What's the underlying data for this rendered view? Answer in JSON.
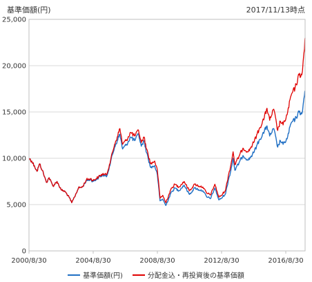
{
  "chart_data": {
    "type": "line",
    "ylabel": "基準価額(円)",
    "as_of": "2017/11/13時点",
    "ylim": [
      0,
      25000
    ],
    "yticks": [
      "0",
      "5,000",
      "10,000",
      "15,000",
      "20,000",
      "25,000"
    ],
    "xlim": [
      "2000-08-30",
      "2017-11-13"
    ],
    "xticks": [
      {
        "label": "2000/8/30",
        "date": "2000-08-30"
      },
      {
        "label": "2004/8/30",
        "date": "2004-08-30"
      },
      {
        "label": "2008/8/30",
        "date": "2008-08-30"
      },
      {
        "label": "2012/8/30",
        "date": "2012-08-30"
      },
      {
        "label": "2016/8/30",
        "date": "2016-08-30"
      }
    ],
    "grid": true,
    "legend_position": "bottom",
    "series": [
      {
        "name": "基準価額(円)",
        "color": "#1f6fc4",
        "points": [
          [
            "2000-08-30",
            10000
          ],
          [
            "2000-10-30",
            9700
          ],
          [
            "2000-12-30",
            9200
          ],
          [
            "2001-02-28",
            8600
          ],
          [
            "2001-04-30",
            9400
          ],
          [
            "2001-06-30",
            8700
          ],
          [
            "2001-09-30",
            7400
          ],
          [
            "2001-11-30",
            7900
          ],
          [
            "2002-02-28",
            7000
          ],
          [
            "2002-05-30",
            7500
          ],
          [
            "2002-08-30",
            6600
          ],
          [
            "2002-11-30",
            6400
          ],
          [
            "2003-02-28",
            5800
          ],
          [
            "2003-04-30",
            5200
          ],
          [
            "2003-06-30",
            5800
          ],
          [
            "2003-09-30",
            6800
          ],
          [
            "2003-12-30",
            6900
          ],
          [
            "2004-03-30",
            7600
          ],
          [
            "2004-06-30",
            7700
          ],
          [
            "2004-08-30",
            7500
          ],
          [
            "2004-12-30",
            7900
          ],
          [
            "2005-03-30",
            8200
          ],
          [
            "2005-06-30",
            8000
          ],
          [
            "2005-09-30",
            9600
          ],
          [
            "2005-12-30",
            11200
          ],
          [
            "2006-02-28",
            11900
          ],
          [
            "2006-04-30",
            12600
          ],
          [
            "2006-06-30",
            11000
          ],
          [
            "2006-09-30",
            11500
          ],
          [
            "2006-12-30",
            12300
          ],
          [
            "2007-03-30",
            11900
          ],
          [
            "2007-06-30",
            12600
          ],
          [
            "2007-08-30",
            11300
          ],
          [
            "2007-10-30",
            11900
          ],
          [
            "2007-12-30",
            10600
          ],
          [
            "2008-03-30",
            9000
          ],
          [
            "2008-06-30",
            9200
          ],
          [
            "2008-08-30",
            8200
          ],
          [
            "2008-10-30",
            5400
          ],
          [
            "2008-12-30",
            5600
          ],
          [
            "2009-03-10",
            4900
          ],
          [
            "2009-06-30",
            6200
          ],
          [
            "2009-09-30",
            6800
          ],
          [
            "2009-12-30",
            6500
          ],
          [
            "2010-04-30",
            7100
          ],
          [
            "2010-08-30",
            6100
          ],
          [
            "2010-12-30",
            6800
          ],
          [
            "2011-03-30",
            6600
          ],
          [
            "2011-06-30",
            6500
          ],
          [
            "2011-09-30",
            5800
          ],
          [
            "2011-12-30",
            5700
          ],
          [
            "2012-03-30",
            6800
          ],
          [
            "2012-06-30",
            5500
          ],
          [
            "2012-08-30",
            5700
          ],
          [
            "2012-11-30",
            6200
          ],
          [
            "2013-01-30",
            7600
          ],
          [
            "2013-03-30",
            8700
          ],
          [
            "2013-05-20",
            10000
          ],
          [
            "2013-06-30",
            8700
          ],
          [
            "2013-09-30",
            9500
          ],
          [
            "2013-12-30",
            10300
          ],
          [
            "2014-04-30",
            9800
          ],
          [
            "2014-08-30",
            10600
          ],
          [
            "2014-12-30",
            11900
          ],
          [
            "2015-04-30",
            12900
          ],
          [
            "2015-06-30",
            13500
          ],
          [
            "2015-08-30",
            12400
          ],
          [
            "2015-11-30",
            13200
          ],
          [
            "2016-02-28",
            11200
          ],
          [
            "2016-04-30",
            11900
          ],
          [
            "2016-06-30",
            11500
          ],
          [
            "2016-09-30",
            12100
          ],
          [
            "2016-12-30",
            13800
          ],
          [
            "2017-03-30",
            14200
          ],
          [
            "2017-06-30",
            15000
          ],
          [
            "2017-08-30",
            14800
          ],
          [
            "2017-09-30",
            15800
          ],
          [
            "2017-10-30",
            16800
          ],
          [
            "2017-11-13",
            17200
          ]
        ]
      },
      {
        "name": "分配金込・再投資後の基準価額",
        "color": "#e00000",
        "points": [
          [
            "2000-08-30",
            10000
          ],
          [
            "2000-10-30",
            9700
          ],
          [
            "2000-12-30",
            9200
          ],
          [
            "2001-02-28",
            8600
          ],
          [
            "2001-04-30",
            9400
          ],
          [
            "2001-06-30",
            8700
          ],
          [
            "2001-09-30",
            7400
          ],
          [
            "2001-11-30",
            7900
          ],
          [
            "2002-02-28",
            7000
          ],
          [
            "2002-05-30",
            7500
          ],
          [
            "2002-08-30",
            6600
          ],
          [
            "2002-11-30",
            6400
          ],
          [
            "2003-02-28",
            5800
          ],
          [
            "2003-04-30",
            5200
          ],
          [
            "2003-06-30",
            5800
          ],
          [
            "2003-09-30",
            6800
          ],
          [
            "2003-12-30",
            6900
          ],
          [
            "2004-03-30",
            7700
          ],
          [
            "2004-06-30",
            7800
          ],
          [
            "2004-08-30",
            7600
          ],
          [
            "2004-12-30",
            8000
          ],
          [
            "2005-03-30",
            8300
          ],
          [
            "2005-06-30",
            8200
          ],
          [
            "2005-09-30",
            9800
          ],
          [
            "2005-12-30",
            11500
          ],
          [
            "2006-02-28",
            12300
          ],
          [
            "2006-04-30",
            13200
          ],
          [
            "2006-06-30",
            11500
          ],
          [
            "2006-09-30",
            12000
          ],
          [
            "2006-12-30",
            12800
          ],
          [
            "2007-03-30",
            12400
          ],
          [
            "2007-06-30",
            13000
          ],
          [
            "2007-08-30",
            11700
          ],
          [
            "2007-10-30",
            12300
          ],
          [
            "2007-12-30",
            11000
          ],
          [
            "2008-03-30",
            9400
          ],
          [
            "2008-06-30",
            9700
          ],
          [
            "2008-08-30",
            8700
          ],
          [
            "2008-10-30",
            5700
          ],
          [
            "2008-12-30",
            6000
          ],
          [
            "2009-03-10",
            5200
          ],
          [
            "2009-06-30",
            6600
          ],
          [
            "2009-09-30",
            7200
          ],
          [
            "2009-12-30",
            6900
          ],
          [
            "2010-04-30",
            7500
          ],
          [
            "2010-08-30",
            6500
          ],
          [
            "2010-12-30",
            7200
          ],
          [
            "2011-03-30",
            7000
          ],
          [
            "2011-06-30",
            6900
          ],
          [
            "2011-09-30",
            6200
          ],
          [
            "2011-12-30",
            6100
          ],
          [
            "2012-03-30",
            7200
          ],
          [
            "2012-06-30",
            5800
          ],
          [
            "2012-08-30",
            6000
          ],
          [
            "2012-11-30",
            6600
          ],
          [
            "2013-01-30",
            8100
          ],
          [
            "2013-03-30",
            9300
          ],
          [
            "2013-05-20",
            10700
          ],
          [
            "2013-06-30",
            9300
          ],
          [
            "2013-09-30",
            10200
          ],
          [
            "2013-12-30",
            11100
          ],
          [
            "2014-04-30",
            10700
          ],
          [
            "2014-08-30",
            11700
          ],
          [
            "2014-12-30",
            13100
          ],
          [
            "2015-04-30",
            14400
          ],
          [
            "2015-06-30",
            15400
          ],
          [
            "2015-08-30",
            14100
          ],
          [
            "2015-11-30",
            15300
          ],
          [
            "2016-02-28",
            13000
          ],
          [
            "2016-04-30",
            14000
          ],
          [
            "2016-06-30",
            13600
          ],
          [
            "2016-09-30",
            14700
          ],
          [
            "2016-12-30",
            16800
          ],
          [
            "2017-03-30",
            17600
          ],
          [
            "2017-06-30",
            19000
          ],
          [
            "2017-08-30",
            19000
          ],
          [
            "2017-09-30",
            20500
          ],
          [
            "2017-10-30",
            21800
          ],
          [
            "2017-11-13",
            23000
          ]
        ]
      }
    ]
  }
}
